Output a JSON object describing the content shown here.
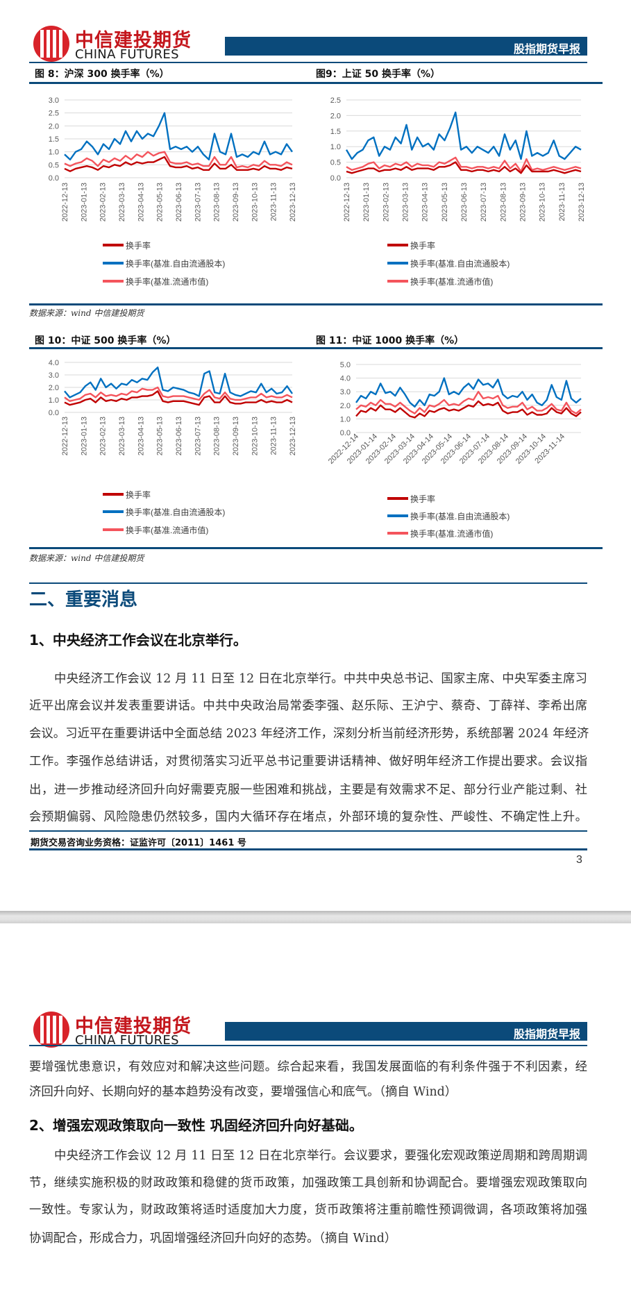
{
  "header": {
    "logo_cn": "中信建投期货",
    "logo_en": "CHINA FUTURES",
    "report_title": "股指期货早报"
  },
  "colors": {
    "brand_blue": "#0b4a7a",
    "logo_red": "#d8232a",
    "series_dark_red": "#c00000",
    "series_blue": "#0070c0",
    "series_pink": "#f4545c"
  },
  "figures": {
    "fig8_title": "图 8：沪深 300 换手率（%）",
    "fig9_title": "图9：上证 50 换手率（%）",
    "fig10_title": "图 10：中证 500 换手率（%）",
    "fig11_title": "图 11：中证 1000 换手率（%）",
    "source1": "数据来源：wind  中信建投期货",
    "source2": "数据来源：wind  中信建投期货"
  },
  "legend": [
    "换手率",
    "换手率(基准.自由流通股本)",
    "换手率(基准.流通市值)"
  ],
  "chart_data": [
    {
      "type": "line",
      "title": "图 8：沪深 300 换手率（%）",
      "ylim": [
        0,
        3.0
      ],
      "yticks": [
        "0.0",
        "0.5",
        "1.0",
        "1.5",
        "2.0",
        "2.5",
        "3.0"
      ],
      "grid": true,
      "legend_position": "bottom",
      "x_range": [
        "2022-12-13",
        "2023-12-13"
      ],
      "xticks": [
        "2022-12-13",
        "2023-01-13",
        "2023-02-13",
        "2023-03-13",
        "2023-04-13",
        "2023-05-13",
        "2023-06-13",
        "2023-07-13",
        "2023-08-13",
        "2023-09-13",
        "2023-10-13",
        "2023-11-13",
        "2023-12-13"
      ],
      "series": [
        {
          "name": "换手率",
          "values": [
            0.35,
            0.25,
            0.35,
            0.4,
            0.45,
            0.4,
            0.3,
            0.45,
            0.4,
            0.5,
            0.45,
            0.6,
            0.5,
            0.6,
            0.55,
            0.6,
            0.6,
            0.7,
            0.8,
            0.45,
            0.4,
            0.4,
            0.45,
            0.35,
            0.4,
            0.3,
            0.3,
            0.55,
            0.35,
            0.35,
            0.5,
            0.3,
            0.3,
            0.3,
            0.35,
            0.3,
            0.45,
            0.35,
            0.35,
            0.3,
            0.4,
            0.35
          ]
        },
        {
          "name": "换手率(基准.自由流通股本)",
          "values": [
            0.9,
            0.7,
            1.0,
            1.1,
            1.4,
            1.2,
            0.9,
            1.3,
            1.1,
            1.5,
            1.3,
            1.8,
            1.4,
            1.8,
            1.5,
            1.7,
            1.6,
            2.0,
            2.5,
            1.1,
            1.2,
            1.1,
            1.2,
            1.0,
            1.2,
            0.9,
            0.7,
            1.7,
            1.0,
            0.9,
            1.7,
            0.8,
            0.9,
            0.8,
            1.0,
            0.9,
            1.4,
            0.9,
            1.0,
            0.9,
            1.3,
            1.0
          ]
        },
        {
          "name": "换手率(基准.流通市值)",
          "values": [
            0.55,
            0.45,
            0.55,
            0.6,
            0.75,
            0.65,
            0.45,
            0.7,
            0.6,
            0.75,
            0.65,
            0.85,
            0.7,
            0.9,
            0.8,
            1.0,
            0.85,
            0.95,
            1.0,
            0.6,
            0.55,
            0.55,
            0.6,
            0.5,
            0.55,
            0.45,
            0.45,
            0.8,
            0.5,
            0.5,
            0.8,
            0.4,
            0.45,
            0.4,
            0.5,
            0.45,
            0.65,
            0.5,
            0.5,
            0.45,
            0.6,
            0.5
          ]
        }
      ]
    },
    {
      "type": "line",
      "title": "图9：上证 50 换手率（%）",
      "ylim": [
        0,
        2.5
      ],
      "yticks": [
        "0.0",
        "0.5",
        "1.0",
        "1.5",
        "2.0",
        "2.5"
      ],
      "grid": true,
      "legend_position": "bottom",
      "x_range": [
        "2022-12-13",
        "2023-12-13"
      ],
      "xticks": [
        "2022-12-13",
        "2023-01-13",
        "2023-02-13",
        "2023-03-13",
        "2023-04-13",
        "2023-05-13",
        "2023-06-13",
        "2023-07-13",
        "2023-08-13",
        "2023-09-13",
        "2023-10-13",
        "2023-11-13",
        "2023-12-13"
      ],
      "series": [
        {
          "name": "换手率",
          "values": [
            0.2,
            0.15,
            0.2,
            0.25,
            0.3,
            0.3,
            0.2,
            0.25,
            0.25,
            0.3,
            0.25,
            0.35,
            0.25,
            0.3,
            0.3,
            0.3,
            0.25,
            0.35,
            0.35,
            0.4,
            0.5,
            0.25,
            0.25,
            0.2,
            0.25,
            0.25,
            0.2,
            0.25,
            0.2,
            0.35,
            0.2,
            0.3,
            0.15,
            0.4,
            0.2,
            0.2,
            0.2,
            0.2,
            0.25,
            0.2,
            0.15,
            0.2,
            0.25,
            0.2
          ]
        },
        {
          "name": "换手率(基准.自由流通股本)",
          "values": [
            0.9,
            0.6,
            0.8,
            0.9,
            1.2,
            1.3,
            0.7,
            1.0,
            0.9,
            1.3,
            1.1,
            1.7,
            0.9,
            1.3,
            1.0,
            1.1,
            0.9,
            1.4,
            1.2,
            1.6,
            2.1,
            0.9,
            1.0,
            0.8,
            1.0,
            0.9,
            0.8,
            1.0,
            0.7,
            1.4,
            0.9,
            1.2,
            0.6,
            1.5,
            0.7,
            0.8,
            0.7,
            0.8,
            1.2,
            0.7,
            0.6,
            0.8,
            1.0,
            0.9
          ]
        },
        {
          "name": "换手率(基准.流通市值)",
          "values": [
            0.35,
            0.25,
            0.3,
            0.35,
            0.45,
            0.5,
            0.3,
            0.4,
            0.35,
            0.45,
            0.4,
            0.5,
            0.35,
            0.45,
            0.4,
            0.4,
            0.35,
            0.5,
            0.45,
            0.55,
            0.65,
            0.35,
            0.35,
            0.3,
            0.35,
            0.35,
            0.3,
            0.35,
            0.3,
            0.55,
            0.3,
            0.45,
            0.2,
            0.6,
            0.25,
            0.3,
            0.25,
            0.3,
            0.35,
            0.3,
            0.25,
            0.3,
            0.35,
            0.3
          ]
        }
      ]
    },
    {
      "type": "line",
      "title": "图 10：中证 500 换手率（%）",
      "ylim": [
        0,
        4.0
      ],
      "yticks": [
        "0.0",
        "1.0",
        "2.0",
        "3.0",
        "4.0"
      ],
      "grid": true,
      "legend_position": "bottom",
      "x_range": [
        "2022-12-13",
        "2023-12-13"
      ],
      "xticks": [
        "2022-12-13",
        "2023-01-13",
        "2023-02-13",
        "2023-03-13",
        "2023-04-13",
        "2023-05-13",
        "2023-06-13",
        "2023-07-13",
        "2023-08-13",
        "2023-09-13",
        "2023-10-13",
        "2023-11-13",
        "2023-12-13"
      ],
      "series": [
        {
          "name": "换手率",
          "values": [
            0.8,
            0.6,
            0.7,
            0.8,
            1.0,
            1.1,
            0.8,
            1.2,
            0.9,
            1.0,
            0.9,
            1.1,
            1.0,
            1.2,
            1.2,
            1.3,
            1.3,
            1.4,
            1.7,
            0.9,
            0.8,
            0.9,
            0.9,
            0.9,
            0.8,
            0.7,
            0.6,
            1.2,
            1.3,
            0.8,
            0.8,
            1.3,
            0.8,
            0.7,
            0.7,
            0.8,
            0.8,
            0.8,
            1.0,
            0.8,
            0.9,
            0.8,
            0.8,
            1.0,
            0.8
          ]
        },
        {
          "name": "换手率(基准.自由流通股本)",
          "values": [
            1.7,
            1.2,
            1.4,
            1.6,
            2.1,
            2.4,
            1.8,
            2.7,
            2.0,
            2.3,
            1.9,
            2.3,
            2.2,
            2.6,
            2.4,
            2.7,
            2.6,
            3.2,
            3.6,
            1.8,
            1.7,
            2.0,
            1.9,
            1.8,
            1.6,
            1.5,
            1.3,
            3.1,
            3.3,
            1.6,
            1.5,
            3.1,
            1.6,
            1.4,
            1.3,
            1.5,
            1.7,
            1.6,
            2.3,
            1.6,
            1.9,
            1.5,
            1.6,
            2.1,
            1.5
          ]
        },
        {
          "name": "换手率(基准.流通市值)",
          "values": [
            1.2,
            0.9,
            1.0,
            1.1,
            1.4,
            1.5,
            1.2,
            1.6,
            1.3,
            1.4,
            1.3,
            1.5,
            1.4,
            1.7,
            1.6,
            1.9,
            1.8,
            1.8,
            2.0,
            1.3,
            1.2,
            1.3,
            1.3,
            1.3,
            1.2,
            1.1,
            1.0,
            1.5,
            1.8,
            1.2,
            1.1,
            1.6,
            1.1,
            1.0,
            1.0,
            1.1,
            1.2,
            1.2,
            1.5,
            1.2,
            1.3,
            1.2,
            1.2,
            1.4,
            1.2
          ]
        }
      ]
    },
    {
      "type": "line",
      "title": "图 11：中证 1000 换手率（%）",
      "ylim": [
        0,
        5.0
      ],
      "yticks": [
        "0.0",
        "1.0",
        "2.0",
        "3.0",
        "4.0",
        "5.0"
      ],
      "grid": true,
      "legend_position": "bottom",
      "x_range": [
        "2022-12-14",
        "2023-12-13"
      ],
      "xticks": [
        "2022-12-14",
        "2023-01-14",
        "2023-02-14",
        "2023-03-14",
        "2023-04-14",
        "2023-05-14",
        "2023-06-14",
        "2023-07-14",
        "2023-08-14",
        "2023-09-14",
        "2023-10-14",
        "2023-11-14"
      ],
      "series": [
        {
          "name": "换手率",
          "values": [
            1.2,
            1.6,
            1.5,
            1.8,
            1.6,
            2.0,
            1.7,
            1.7,
            1.5,
            1.8,
            1.5,
            1.2,
            1.1,
            1.4,
            1.2,
            1.6,
            1.5,
            1.7,
            1.8,
            1.6,
            1.7,
            1.6,
            1.8,
            2.0,
            1.9,
            2.3,
            2.0,
            2.1,
            2.0,
            2.2,
            1.6,
            1.4,
            1.5,
            1.5,
            1.7,
            1.3,
            1.5,
            1.3,
            1.3,
            1.4,
            1.8,
            1.5,
            1.4,
            1.8,
            1.4,
            1.2,
            1.5
          ]
        },
        {
          "name": "换手率(基准.自由流通股本)",
          "values": [
            2.2,
            2.7,
            2.5,
            3.0,
            2.8,
            3.6,
            2.9,
            3.0,
            2.7,
            3.3,
            2.8,
            2.2,
            1.9,
            2.4,
            2.0,
            2.8,
            2.7,
            3.0,
            4.0,
            2.8,
            3.0,
            2.8,
            3.3,
            3.6,
            3.2,
            3.9,
            3.5,
            3.6,
            3.3,
            3.9,
            2.8,
            2.5,
            2.7,
            2.6,
            3.0,
            2.4,
            2.8,
            2.2,
            2.0,
            2.4,
            3.5,
            2.6,
            2.4,
            3.8,
            2.5,
            2.2,
            2.5
          ]
        },
        {
          "name": "换手率(基准.流通市值)",
          "values": [
            1.7,
            2.0,
            1.9,
            2.2,
            2.0,
            2.4,
            2.1,
            2.1,
            1.9,
            2.2,
            1.9,
            1.6,
            1.4,
            1.8,
            1.5,
            2.0,
            1.9,
            2.1,
            2.4,
            2.0,
            2.1,
            2.0,
            2.3,
            2.5,
            2.4,
            3.0,
            2.5,
            2.6,
            2.5,
            2.7,
            2.0,
            1.8,
            1.9,
            1.9,
            2.2,
            1.7,
            1.9,
            1.6,
            1.6,
            1.8,
            2.1,
            1.7,
            1.6,
            2.2,
            1.6,
            1.4,
            1.7
          ]
        }
      ]
    }
  ],
  "section": {
    "title": "二、重要消息"
  },
  "news1": {
    "heading": "1、中央经济工作会议在北京举行。",
    "lines": [
      "中央经济工作会议 12 月 11 日至 12 日在北京举行。中共中央总书记、国家主席、中央军委主席习",
      "近平出席会议并发表重要讲话。中共中央政治局常委李强、赵乐际、王沪宁、蔡奇、丁薛祥、李希出席",
      "会议。习近平在重要讲话中全面总结 2023 年经济工作，深刻分析当前经济形势，系统部署 2024 年经济",
      "工作。李强作总结讲话，对贯彻落实习近平总书记重要讲话精神、做好明年经济工作提出要求。会议指",
      "出，进一步推动经济回升向好需要克服一些困难和挑战，主要是有效需求不足、部分行业产能过剩、社",
      "会预期偏弱、风险隐患仍然较多，国内大循环存在堵点，外部环境的复杂性、严峻性、不确定性上升。"
    ],
    "continued": [
      "要增强忧患意识，有效应对和解决这些问题。综合起来看，我国发展面临的有利条件强于不利因素，经",
      "济回升向好、长期向好的基本趋势没有改变，要增强信心和底气。（摘自 Wind）"
    ]
  },
  "news2": {
    "heading": "2、增强宏观政策取向一致性 巩固经济回升向好基础。",
    "lines": [
      "中央经济工作会议 12 月 11 日至 12 日在北京举行。会议要求，要强化宏观政策逆周期和跨周期调",
      "节，继续实施积极的财政政策和稳健的货币政策，加强政策工具创新和协调配合。要增强宏观政策取向",
      "一致性。专家认为，财政政策将适时适度加大力度，货币政策将注重前瞻性预调微调，各项政策将加强",
      "协调配合，形成合力，巩固增强经济回升向好的态势。（摘自 Wind）"
    ]
  },
  "footer": {
    "license": "期货交易咨询业务资格：证监许可〔2011〕1461 号",
    "page_number": "3"
  }
}
